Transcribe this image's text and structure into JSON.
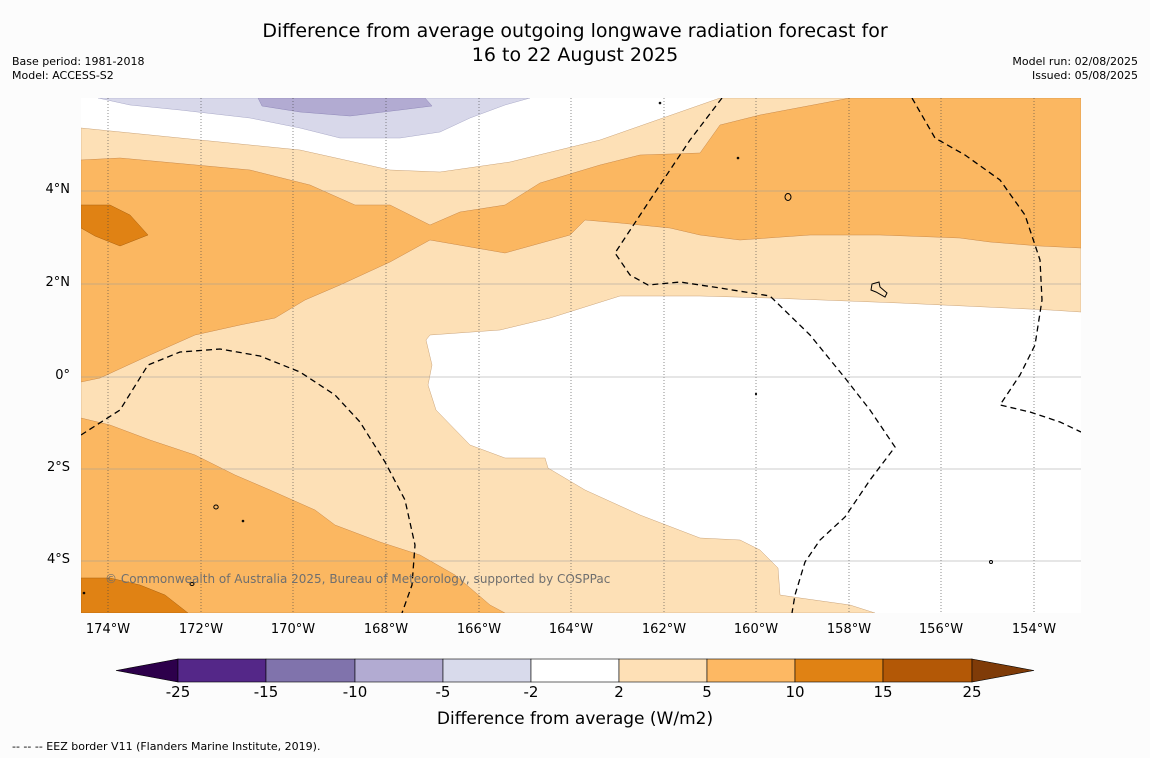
{
  "header": {
    "title_line1": "Difference from average outgoing longwave radiation forecast for",
    "title_line2": "16 to 22 August 2025",
    "base_period": "Base period: 1981-2018",
    "model": "Model: ACCESS-S2",
    "model_run": "Model run: 02/08/2025",
    "issued": "Issued: 05/08/2025"
  },
  "map": {
    "lat_labels": [
      "4°N",
      "2°N",
      "0°",
      "2°S",
      "4°S"
    ],
    "lon_labels": [
      "174°W",
      "172°W",
      "170°W",
      "168°W",
      "166°W",
      "164°W",
      "162°W",
      "160°W",
      "158°W",
      "156°W",
      "154°W"
    ],
    "credit": "© Commonwealth of Australia 2025, Bureau of Meteorology, supported by COSPPac",
    "fill_colors": {
      "lilac_light": "#d8d8ea",
      "lilac": "#b2abd2",
      "orange_light": "#fde0b6",
      "orange": "#fbb761",
      "orange_dark": "#e08214"
    }
  },
  "colorbar": {
    "ticks": [
      "-25",
      "-15",
      "-10",
      "-5",
      "-2",
      "2",
      "5",
      "10",
      "15",
      "25"
    ],
    "colors": [
      "#542788",
      "#8073ac",
      "#b2abd2",
      "#d8daeb",
      "#ffffff",
      "#fee0b6",
      "#fdb863",
      "#e08214",
      "#b35806"
    ],
    "under_color": "#2d004b",
    "over_color": "#7f3b08",
    "label": "Difference from average (W/m2)"
  },
  "footer": {
    "eez_legend": "--  --  -- EEZ border V11 (Flanders Marine Institute, 2019)."
  }
}
